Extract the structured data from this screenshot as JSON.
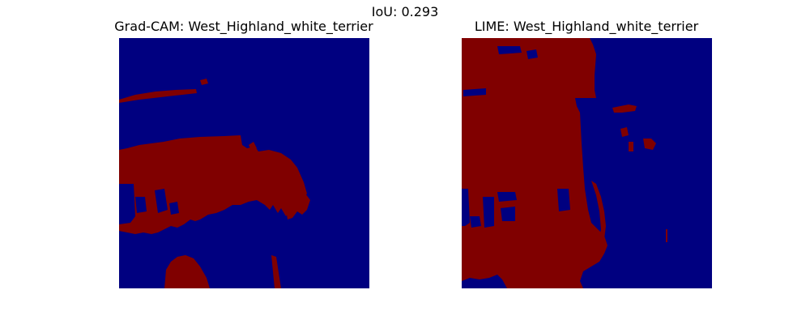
{
  "figure": {
    "suptitle": "IoU: 0.293",
    "colors": {
      "background_region": "#000080",
      "highlight_region": "#800000"
    },
    "panels": [
      {
        "title": "Grad-CAM: West_Highland_white_terrier"
      },
      {
        "title": "LIME: West_Highland_white_terrier"
      }
    ]
  }
}
